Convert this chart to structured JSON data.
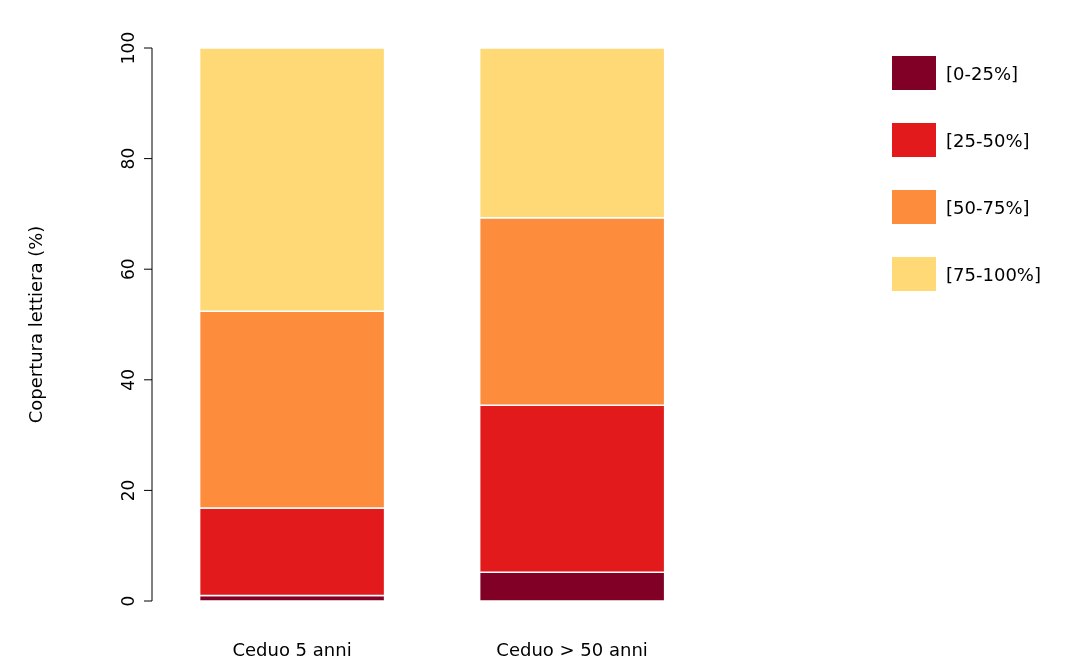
{
  "chart_data": {
    "type": "bar",
    "stacked": true,
    "ylabel": "Copertura lettiera (%)",
    "categories": [
      "Ceduo 5 anni",
      "Ceduo > 50 anni"
    ],
    "series": [
      {
        "name": "[0-25%]",
        "color": "#800026",
        "values": [
          1,
          5.2
        ]
      },
      {
        "name": "[25-50%]",
        "color": "#e31a1c",
        "values": [
          15.8,
          30.2
        ]
      },
      {
        "name": "[50-75%]",
        "color": "#fd8d3c",
        "values": [
          35.6,
          33.9
        ]
      },
      {
        "name": "[75-100%]",
        "color": "#fed976",
        "values": [
          47.6,
          30.7
        ]
      }
    ],
    "ylim": [
      0,
      100
    ],
    "yticks": [
      0,
      20,
      40,
      60,
      80,
      100
    ],
    "grid": false,
    "legend": "top right"
  }
}
